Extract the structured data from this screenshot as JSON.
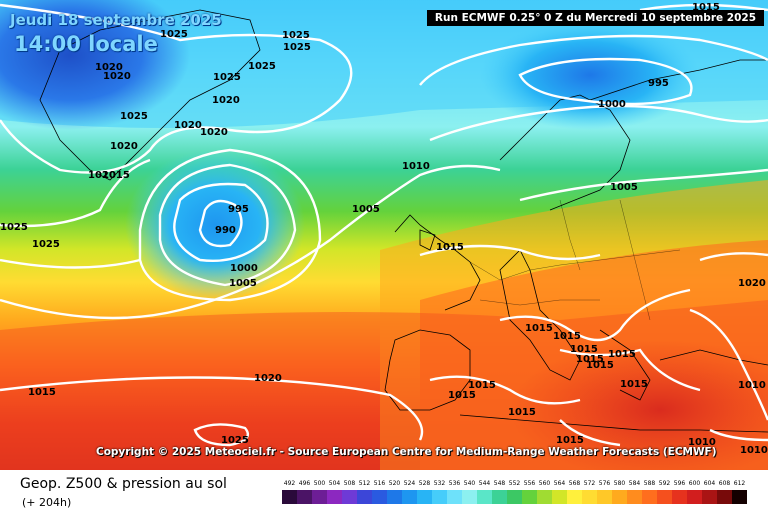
{
  "header": {
    "run_info": "Run ECMWF 0.25° 0 Z du Mercredi 10 septembre 2025",
    "date": "Jeudi 18 septembre 2025",
    "time": "14:00 locale"
  },
  "map": {
    "copyright": "Copyright © 2025 Meteociel.fr - Source European Centre for Medium-Range Weather Forecasts (ECMWF)",
    "isobar_labels": [
      "1025",
      "1025",
      "1025",
      "1020",
      "1020",
      "1025",
      "1025",
      "1020",
      "1020",
      "1025",
      "1020",
      "1020",
      "1020",
      "1015",
      "995",
      "990",
      "1000",
      "1005",
      "1005",
      "1010",
      "1015",
      "1025",
      "1025",
      "1015",
      "1020",
      "1025",
      "1015",
      "1015",
      "1015",
      "1015",
      "1015",
      "1015",
      "1020",
      "1015",
      "1010",
      "1010",
      "1010",
      "1015",
      "1015",
      "1015",
      "1015",
      "995",
      "1000",
      "1005",
      "1015"
    ],
    "colors": {
      "low_geopotential": "#1e64d8",
      "high_geopotential": "#e8321e",
      "isobar": "#ffffff",
      "coastline": "#000000"
    }
  },
  "footer": {
    "title": "Geop. Z500 & pression au sol",
    "subtitle": "(+ 204h)"
  },
  "legend": {
    "values": [
      "492",
      "496",
      "500",
      "504",
      "508",
      "512",
      "516",
      "520",
      "524",
      "528",
      "532",
      "536",
      "540",
      "544",
      "548",
      "552",
      "556",
      "560",
      "564",
      "568",
      "572",
      "576",
      "580",
      "584",
      "588",
      "592",
      "596",
      "600",
      "604",
      "608",
      "612"
    ],
    "colors": [
      "#2a0a3a",
      "#4b1466",
      "#6d1e96",
      "#8c28c0",
      "#6e3ad6",
      "#3c46d8",
      "#2a5ae0",
      "#1e78e8",
      "#1e96f0",
      "#28b4f5",
      "#46cdfa",
      "#6ee1fa",
      "#8cf0f0",
      "#5ae6c8",
      "#3cd296",
      "#3cc864",
      "#64d23c",
      "#a0dc32",
      "#d2e628",
      "#fff03c",
      "#ffdc32",
      "#ffc828",
      "#ffaa1e",
      "#ff8c1e",
      "#ff6e1e",
      "#f5501e",
      "#e6321e",
      "#d21e1e",
      "#aa1414",
      "#780a0a",
      "#140000"
    ]
  }
}
